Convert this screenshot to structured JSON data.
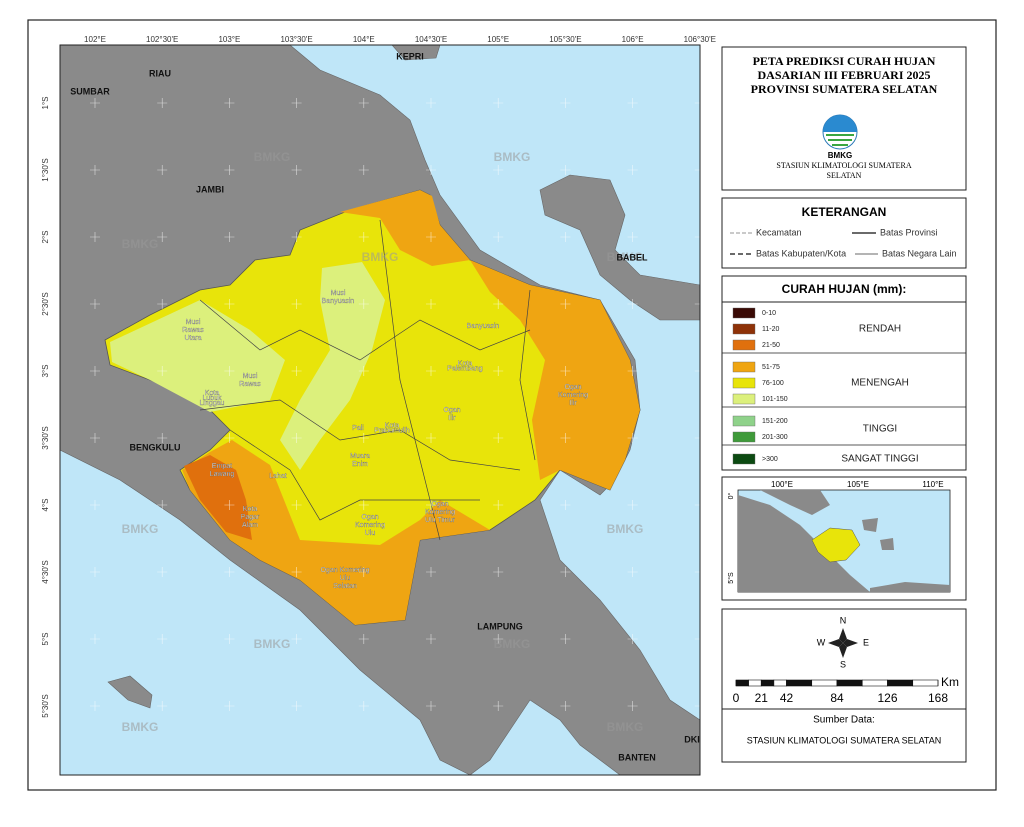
{
  "map": {
    "lon_labels": [
      "102°E",
      "102°30'E",
      "103°E",
      "103°30'E",
      "104°E",
      "104°30'E",
      "105°E",
      "105°30'E",
      "106°E",
      "106°30'E"
    ],
    "lat_labels": [
      "1°S",
      "1°30'S",
      "2°S",
      "2°30'S",
      "3°S",
      "3°30'S",
      "4°S",
      "4°30'S",
      "5°S",
      "5°30'S"
    ],
    "provinces": [
      "RIAU",
      "SUMBAR",
      "JAMBI",
      "KEPRI",
      "BABEL",
      "BENGKULU",
      "LAMPUNG",
      "DKI",
      "BANTEN"
    ],
    "regencies": [
      {
        "lines": [
          "Musi",
          "Rawas",
          "Utara"
        ]
      },
      {
        "lines": [
          "Musi",
          "Banyuasin"
        ]
      },
      {
        "lines": [
          "Banyuasin"
        ]
      },
      {
        "lines": [
          "Musi",
          "Rawas"
        ]
      },
      {
        "lines": [
          "Kota",
          "Lubuk",
          "Linggau"
        ]
      },
      {
        "lines": [
          "Kota",
          "Palembang"
        ]
      },
      {
        "lines": [
          "Pali"
        ]
      },
      {
        "lines": [
          "Kota",
          "Prabumulih"
        ]
      },
      {
        "lines": [
          "Ogan",
          "Ilir"
        ]
      },
      {
        "lines": [
          "Ogan",
          "Komering",
          "Ilir"
        ]
      },
      {
        "lines": [
          "Empat",
          "Lawang"
        ]
      },
      {
        "lines": [
          "Lahat"
        ]
      },
      {
        "lines": [
          "Muara",
          "Enim"
        ]
      },
      {
        "lines": [
          "Kota",
          "Pagar",
          "Alam"
        ]
      },
      {
        "lines": [
          "Ogan",
          "Komering",
          "Ulu"
        ]
      },
      {
        "lines": [
          "Ogan",
          "Komering",
          "Ulu Timur"
        ]
      },
      {
        "lines": [
          "Ogan Komering",
          "Ulu",
          "Selatan"
        ]
      }
    ],
    "watermark": "BMKG"
  },
  "title": {
    "lines": [
      "PETA PREDIKSI CURAH HUJAN",
      "DASARIAN III FEBRUARI 2025",
      "PROVINSI SUMATERA SELATAN"
    ],
    "logo_text": "BMKG",
    "station_lines": [
      "STASIUN KLIMATOLOGI SUMATERA",
      "SELATAN"
    ]
  },
  "keterangan": {
    "heading": "KETERANGAN",
    "items": [
      "Kecamatan",
      "Batas Provinsi",
      "Batas Kabupaten/Kota",
      "Batas Negara Lain"
    ]
  },
  "rainfall_legend": {
    "heading": "CURAH HUJAN (mm):",
    "groups": [
      {
        "label": "RENDAH",
        "classes": [
          {
            "range": "0-10",
            "color": "#3a0a05"
          },
          {
            "range": "11-20",
            "color": "#8e3208"
          },
          {
            "range": "21-50",
            "color": "#e0700d"
          }
        ]
      },
      {
        "label": "MENENGAH",
        "classes": [
          {
            "range": "51-75",
            "color": "#efa512"
          },
          {
            "range": "76-100",
            "color": "#e8e40a"
          },
          {
            "range": "101-150",
            "color": "#dcf07c"
          }
        ]
      },
      {
        "label": "TINGGI",
        "classes": [
          {
            "range": "151-200",
            "color": "#8fd28a"
          },
          {
            "range": "201-300",
            "color": "#3f9a3a"
          }
        ]
      },
      {
        "label": "SANGAT TINGGI",
        "classes": [
          {
            "range": ">300",
            "color": "#0c4a12"
          }
        ]
      }
    ]
  },
  "inset": {
    "lon_labels": [
      "100°E",
      "105°E",
      "110°E"
    ],
    "lat_labels": [
      "0°",
      "5°S"
    ]
  },
  "compass": {
    "north": "N",
    "south": "S",
    "west": "W",
    "east": "E"
  },
  "scale_bar": {
    "ticks": [
      0,
      21,
      42,
      84,
      126,
      168
    ],
    "unit": "Km"
  },
  "source": {
    "heading": "Sumber Data:",
    "text": "STASIUN KLIMATOLOGI SUMATERA SELATAN"
  }
}
